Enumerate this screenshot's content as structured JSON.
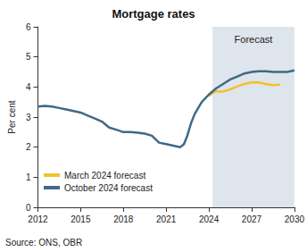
{
  "chart_data": {
    "type": "line",
    "title": "Mortgage rates",
    "y_label": "Per cent",
    "source": "Source: ONS, OBR",
    "forecast_region": {
      "label": "Forecast",
      "start": 2024.25,
      "end": 2030
    },
    "series": [
      {
        "name": "March 2024 forecast",
        "color": "#f2c12e",
        "x": [
          2024,
          2024.25,
          2024.5,
          2024.75,
          2025,
          2025.5,
          2026,
          2026.5,
          2027,
          2027.5,
          2028,
          2028.5,
          2029
        ],
        "values": [
          3.7,
          3.8,
          3.86,
          3.85,
          3.85,
          3.92,
          4.02,
          4.1,
          4.15,
          4.15,
          4.1,
          4.06,
          4.08
        ]
      },
      {
        "name": "October 2024 forecast",
        "color": "#3f6a86",
        "x": [
          2012,
          2012.5,
          2013,
          2013.5,
          2014,
          2014.5,
          2015,
          2015.5,
          2016,
          2016.5,
          2017,
          2017.5,
          2018,
          2018.5,
          2019,
          2019.5,
          2020,
          2020.5,
          2021,
          2021.5,
          2022,
          2022.25,
          2022.5,
          2022.75,
          2023,
          2023.5,
          2024,
          2024.5,
          2025,
          2025.5,
          2026,
          2026.5,
          2027,
          2027.5,
          2028,
          2028.5,
          2029,
          2029.5,
          2030
        ],
        "values": [
          3.35,
          3.37,
          3.35,
          3.3,
          3.25,
          3.2,
          3.15,
          3.05,
          2.95,
          2.85,
          2.65,
          2.58,
          2.5,
          2.5,
          2.48,
          2.45,
          2.38,
          2.15,
          2.1,
          2.05,
          2.0,
          2.1,
          2.4,
          2.8,
          3.1,
          3.5,
          3.75,
          3.95,
          4.1,
          4.25,
          4.35,
          4.45,
          4.5,
          4.52,
          4.52,
          4.5,
          4.5,
          4.5,
          4.55
        ]
      }
    ],
    "xlim": [
      2012,
      2030
    ],
    "xticks": [
      2012,
      2015,
      2018,
      2021,
      2024,
      2027,
      2030
    ],
    "ylim": [
      0,
      6
    ],
    "yticks": [
      0,
      1,
      2,
      3,
      4,
      5,
      6
    ],
    "grid": false,
    "legend": "bottom-left"
  }
}
